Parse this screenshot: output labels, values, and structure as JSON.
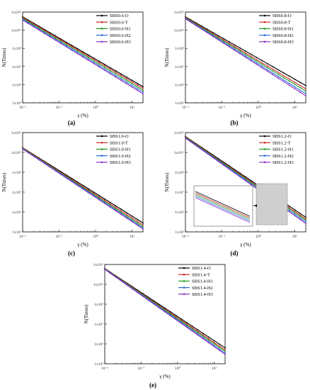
{
  "figure": {
    "panels": [
      {
        "label": "(a)"
      },
      {
        "label": "(b)"
      },
      {
        "label": "(c)"
      },
      {
        "label": "(d)"
      },
      {
        "label": "(e)"
      }
    ]
  },
  "chart_data": [
    {
      "type": "line",
      "panel": "(a)",
      "xlabel": "γ (%)",
      "ylabel": "N(Times)",
      "xscale": "log",
      "yscale": "log",
      "xlim": [
        0.01,
        20
      ],
      "ylim": [
        1000.0,
        10000000000000.0
      ],
      "x_ticks": [
        "10⁻²",
        "10⁻¹",
        "10⁰",
        "10¹"
      ],
      "y_ticks": [
        "1x10³",
        "1x10⁵",
        "1x10⁷",
        "1x10⁹",
        "1x10¹¹",
        "1x10¹³"
      ],
      "legend_position": "top-right",
      "grid": false,
      "series": [
        {
          "name": "SBS0.6-O",
          "color": "#000000",
          "x": [
            0.01,
            20
          ],
          "y": [
            3000000000000.0,
            60000.0
          ]
        },
        {
          "name": "SBS0.6-T",
          "color": "#d22a2a",
          "x": [
            0.01,
            20
          ],
          "y": [
            2500000000000.0,
            40000.0
          ]
        },
        {
          "name": "SBS0.6-H1",
          "color": "#1e9a1e",
          "x": [
            0.01,
            20
          ],
          "y": [
            2000000000000.0,
            25000.0
          ]
        },
        {
          "name": "SBS0.6-H2",
          "color": "#2f6fdb",
          "x": [
            0.01,
            20
          ],
          "y": [
            1600000000000.0,
            15000.0
          ]
        },
        {
          "name": "SBS0.6-H3",
          "color": "#8b2fc4",
          "x": [
            0.01,
            20
          ],
          "y": [
            1300000000000.0,
            10000.0
          ]
        }
      ]
    },
    {
      "type": "line",
      "panel": "(b)",
      "xlabel": "γ (%)",
      "ylabel": "N(Times)",
      "xscale": "log",
      "yscale": "log",
      "xlim": [
        0.01,
        20
      ],
      "ylim": [
        1000.0,
        10000000000000.0
      ],
      "x_ticks": [
        "10⁻²",
        "10⁻¹",
        "10⁰",
        "10¹"
      ],
      "y_ticks": [
        "1x10³",
        "1x10⁵",
        "1x10⁷",
        "1x10⁹",
        "1x10¹¹",
        "1x10¹³"
      ],
      "legend_position": "top-right",
      "grid": false,
      "series": [
        {
          "name": "SBS0.8-O",
          "color": "#000000",
          "x": [
            0.01,
            20
          ],
          "y": [
            3000000000000.0,
            80000.0
          ]
        },
        {
          "name": "SBS0.8-T",
          "color": "#d22a2a",
          "x": [
            0.01,
            20
          ],
          "y": [
            2600000000000.0,
            35000.0
          ]
        },
        {
          "name": "SBS0.8-H1",
          "color": "#1e9a1e",
          "x": [
            0.01,
            20
          ],
          "y": [
            2300000000000.0,
            20000.0
          ]
        },
        {
          "name": "SBS0.8-H2",
          "color": "#2f6fdb",
          "x": [
            0.01,
            20
          ],
          "y": [
            2000000000000.0,
            10000.0
          ]
        },
        {
          "name": "SBS0.8-H3",
          "color": "#8b2fc4",
          "x": [
            0.01,
            20
          ],
          "y": [
            1800000000000.0,
            6000.0
          ]
        }
      ]
    },
    {
      "type": "line",
      "panel": "(c)",
      "xlabel": "γ (%)",
      "ylabel": "N(Times)",
      "xscale": "log",
      "yscale": "log",
      "xlim": [
        0.01,
        20
      ],
      "ylim": [
        1000.0,
        10000000000000.0
      ],
      "x_ticks": [
        "10⁻²",
        "10⁻¹",
        "10⁰",
        "10¹"
      ],
      "y_ticks": [
        "1x10³",
        "1x10⁵",
        "1x10⁷",
        "1x10⁹",
        "1x10¹¹",
        "1x10¹³"
      ],
      "legend_position": "top-right",
      "grid": false,
      "series": [
        {
          "name": "SBS1.0-O",
          "color": "#000000",
          "x": [
            0.01,
            20
          ],
          "y": [
            300000000000.0,
            8000.0
          ]
        },
        {
          "name": "SBS1.0-T",
          "color": "#d22a2a",
          "x": [
            0.01,
            20
          ],
          "y": [
            280000000000.0,
            5000.0
          ]
        },
        {
          "name": "SBS1.0-H1",
          "color": "#1e9a1e",
          "x": [
            0.01,
            20
          ],
          "y": [
            260000000000.0,
            3500.0
          ]
        },
        {
          "name": "SBS1.0-H2",
          "color": "#2f6fdb",
          "x": [
            0.01,
            20
          ],
          "y": [
            240000000000.0,
            2500.0
          ]
        },
        {
          "name": "SBS1.0-H3",
          "color": "#8b2fc4",
          "x": [
            0.01,
            20
          ],
          "y": [
            220000000000.0,
            2000.0
          ]
        }
      ]
    },
    {
      "type": "line",
      "panel": "(d)",
      "xlabel": "γ (%)",
      "ylabel": "N(Times)",
      "xscale": "log",
      "yscale": "log",
      "xlim": [
        0.01,
        20
      ],
      "ylim": [
        1000.0,
        10000000000000.0
      ],
      "x_ticks": [
        "10⁻²",
        "10⁻¹",
        "10⁰",
        "10¹"
      ],
      "y_ticks": [
        "1x10³",
        "1x10⁵",
        "1x10⁷",
        "1x10⁹",
        "1x10¹¹",
        "1x10¹³"
      ],
      "legend_position": "top-right",
      "grid": false,
      "inset": true,
      "series": [
        {
          "name": "SBS1.2-O",
          "color": "#000000",
          "x": [
            0.01,
            20
          ],
          "y": [
            4000000000000.0,
            30000.0
          ]
        },
        {
          "name": "SBS1.2-T",
          "color": "#d22a2a",
          "x": [
            0.01,
            20
          ],
          "y": [
            3600000000000.0,
            20000.0
          ]
        },
        {
          "name": "SBS1.2-H1",
          "color": "#1e9a1e",
          "x": [
            0.01,
            20
          ],
          "y": [
            3300000000000.0,
            15000.0
          ]
        },
        {
          "name": "SBS1.2-H2",
          "color": "#2f6fdb",
          "x": [
            0.01,
            20
          ],
          "y": [
            3000000000000.0,
            10000.0
          ]
        },
        {
          "name": "SBS1.2-H3",
          "color": "#8b2fc4",
          "x": [
            0.01,
            20
          ],
          "y": [
            2800000000000.0,
            7000.0
          ]
        }
      ]
    },
    {
      "type": "line",
      "panel": "(e)",
      "xlabel": "γ (%)",
      "ylabel": "N(Times)",
      "xscale": "log",
      "yscale": "log",
      "xlim": [
        0.01,
        20
      ],
      "ylim": [
        1000.0,
        10000000000000.0
      ],
      "x_ticks": [
        "10⁻²",
        "10⁻¹",
        "10⁰",
        "10¹"
      ],
      "y_ticks": [
        "1x10³",
        "1x10⁵",
        "1x10⁷",
        "1x10⁹",
        "1x10¹¹",
        "1x10¹³"
      ],
      "legend_position": "top-right",
      "grid": false,
      "series": [
        {
          "name": "SBS1.4-O",
          "color": "#000000",
          "x": [
            0.01,
            20
          ],
          "y": [
            4000000000000.0,
            40000.0
          ]
        },
        {
          "name": "SBS1.4-T",
          "color": "#d22a2a",
          "x": [
            0.01,
            20
          ],
          "y": [
            3800000000000.0,
            25000.0
          ]
        },
        {
          "name": "SBS1.4-H1",
          "color": "#1e9a1e",
          "x": [
            0.01,
            20
          ],
          "y": [
            3600000000000.0,
            18000.0
          ]
        },
        {
          "name": "SBS1.4-H2",
          "color": "#2f6fdb",
          "x": [
            0.01,
            20
          ],
          "y": [
            3400000000000.0,
            12000.0
          ]
        },
        {
          "name": "SBS1.4-H3",
          "color": "#8b2fc4",
          "x": [
            0.01,
            20
          ],
          "y": [
            3200000000000.0,
            9000.0
          ]
        }
      ]
    }
  ]
}
